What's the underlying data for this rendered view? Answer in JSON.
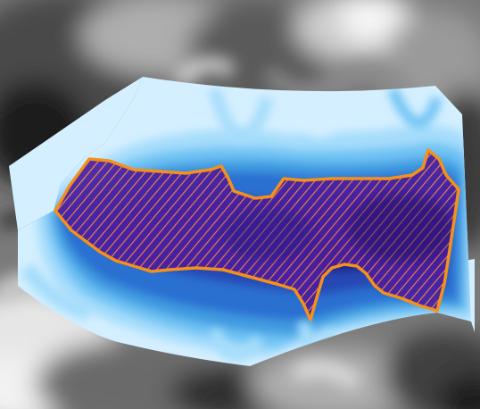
{
  "view": {
    "kind": "3d-terrain-surface-render",
    "background_color": "#ffffff"
  },
  "terrain": {
    "colormap": "grayscale",
    "colors": [
      "#101010",
      "#2e2e2e",
      "#4a4a4a",
      "#6a6a6a",
      "#8c8c8c",
      "#aeaeae",
      "#cdcdcd",
      "#e6e6e6",
      "#f7f7f7"
    ]
  },
  "surface": {
    "colormap": "blue-levels",
    "colors": [
      "#d4efff",
      "#a6ddfb",
      "#6ec2f4",
      "#3f9be0",
      "#2c6fd1",
      "#2747b4",
      "#1a1b84",
      "#0b0a5a"
    ],
    "outline_color": "#f5901a"
  },
  "region": {
    "fill_color": "#4a1ea0",
    "hatch_color": "#ff8a3a",
    "outline_color": "#f5901a"
  }
}
